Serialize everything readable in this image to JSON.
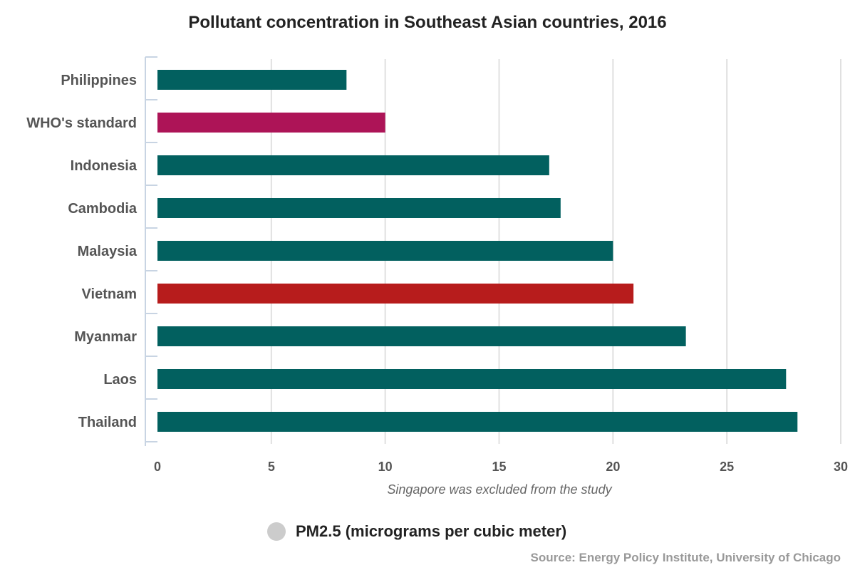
{
  "chart_data": {
    "type": "bar",
    "orientation": "horizontal",
    "title": "Pollutant concentration in Southeast Asian countries, 2016",
    "categories": [
      "Philippines",
      "WHO's standard",
      "Indonesia",
      "Cambodia",
      "Malaysia",
      "Vietnam",
      "Myanmar",
      "Laos",
      "Thailand"
    ],
    "values": [
      8.3,
      10.0,
      17.2,
      17.7,
      20.0,
      20.9,
      23.2,
      27.6,
      28.1
    ],
    "colors": [
      "#02605f",
      "#ad1457",
      "#02605f",
      "#02605f",
      "#02605f",
      "#b71c1c",
      "#02605f",
      "#02605f",
      "#02605f"
    ],
    "xlim": [
      0,
      30
    ],
    "xticks": [
      0,
      5,
      10,
      15,
      20,
      25,
      30
    ],
    "xlabel": "Singapore was excluded from the study",
    "legend": {
      "label": "PM2.5 (micrograms per cubic meter)",
      "color": "#cccccc",
      "placement": "bottom-center"
    },
    "source": "Source: Energy Policy Institute, University of Chicago",
    "grid": true
  }
}
